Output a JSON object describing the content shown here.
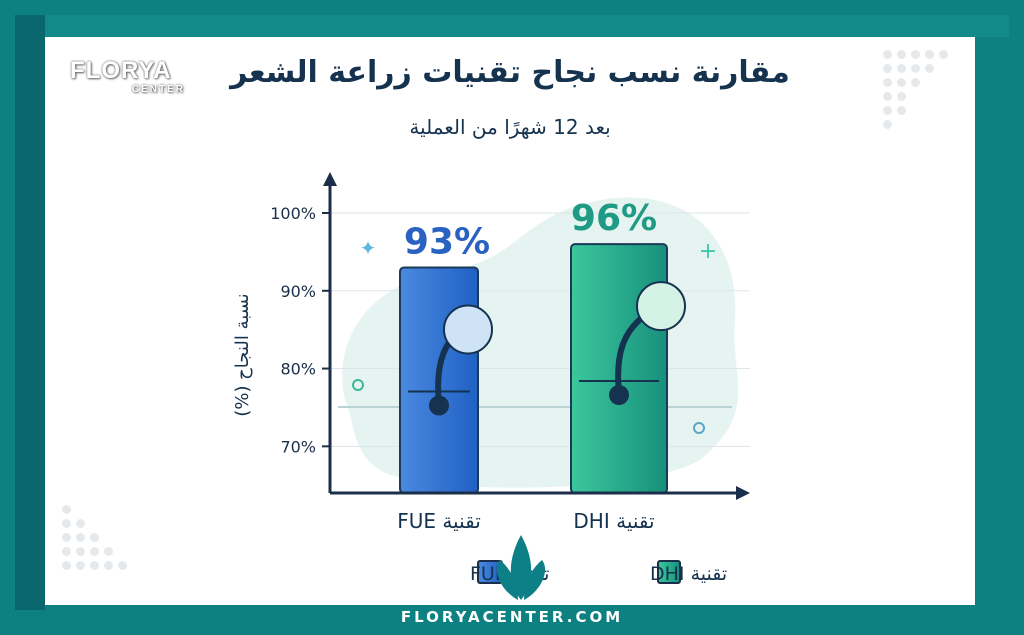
{
  "logo": {
    "line1": "FLORYA",
    "line2": "CENTER"
  },
  "footer": "FLORYACENTER.COM",
  "colors": {
    "frame": "#0d8082",
    "fue": "#2f6fd0",
    "dhi": "#23a98a",
    "title": "#15324f"
  },
  "chart_data": {
    "type": "bar",
    "title": "مقارنة نسب نجاح تقنيات زراعة الشعر",
    "subtitle": "بعد 12 شهرًا من العملية",
    "ylabel": "نسبة النجاح (%)",
    "xlabel": "",
    "categories": [
      "تقنية FUE",
      "تقنية DHI"
    ],
    "values": [
      93,
      96
    ],
    "data_labels": [
      "93%",
      "96%"
    ],
    "yticks": [
      "70%",
      "80%",
      "90%",
      "100%"
    ],
    "ytick_values": [
      70,
      80,
      90,
      100
    ],
    "ylim": [
      64,
      100
    ],
    "grid": true,
    "legend": {
      "position": "bottom",
      "entries": [
        "تقنية DHI",
        "تقنية FUE"
      ]
    }
  }
}
